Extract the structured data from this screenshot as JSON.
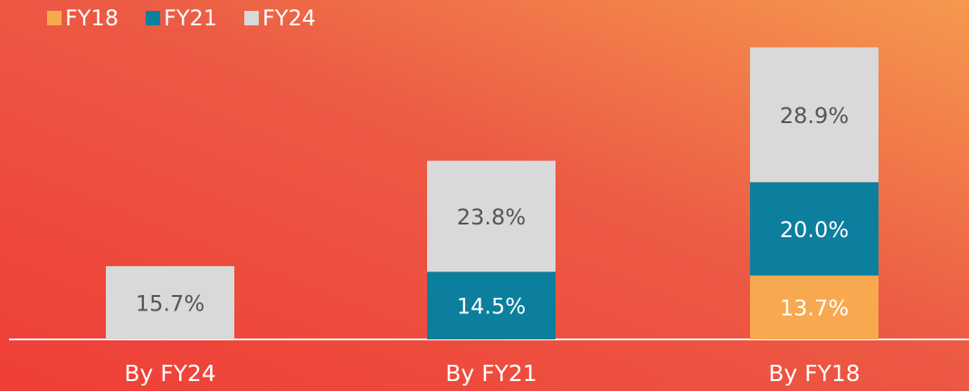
{
  "chart_data": {
    "type": "stacked_bar",
    "categories": [
      "By FY24",
      "By FY21",
      "By FY18"
    ],
    "series": [
      {
        "name": "FY18",
        "color": "#f8a94f",
        "values": [
          null,
          null,
          13.7
        ],
        "value_labels": [
          null,
          null,
          "13.7%"
        ]
      },
      {
        "name": "FY21",
        "color": "#0c7f9e",
        "values": [
          null,
          14.5,
          20.0
        ],
        "value_labels": [
          null,
          "14.5%",
          "20.0%"
        ]
      },
      {
        "name": "FY24",
        "color": "#d9d9d9",
        "values": [
          15.7,
          23.8,
          28.9
        ],
        "value_labels": [
          "15.7%",
          "23.8%",
          "28.9%"
        ]
      }
    ],
    "ylim": [
      0,
      65
    ],
    "legend": "top-left"
  }
}
